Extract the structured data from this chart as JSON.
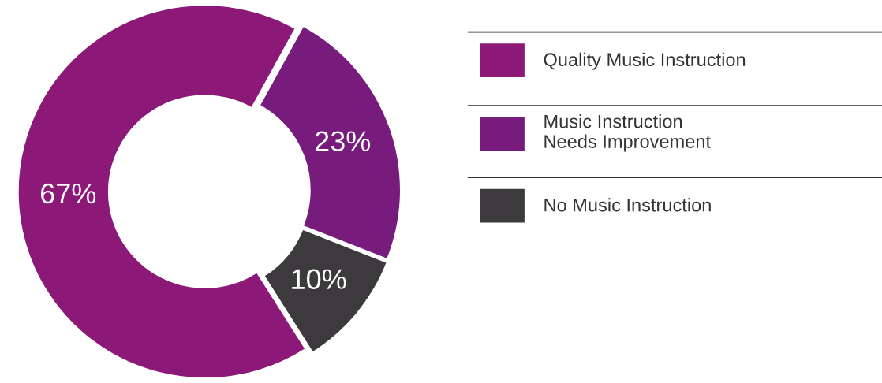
{
  "chart_data": {
    "type": "donut",
    "categories": [
      "Quality Music Instruction",
      "Music Instruction\nNeeds Improvement",
      "No Music Instruction"
    ],
    "values": [
      67,
      23,
      10
    ],
    "colors": [
      "#8c1878",
      "#771c7c",
      "#3c3a3c"
    ],
    "value_labels": [
      "67%",
      "23%",
      "10%"
    ],
    "legend": "right"
  }
}
